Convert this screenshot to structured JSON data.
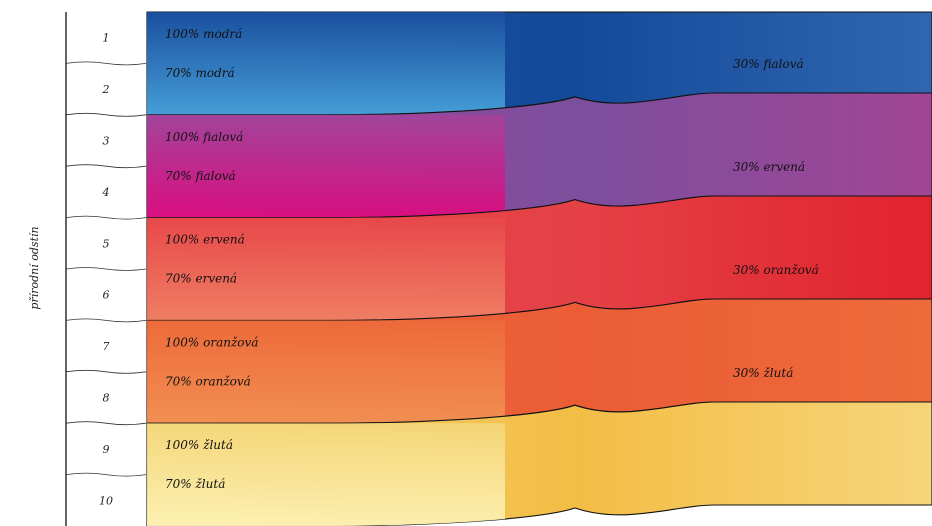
{
  "y_label": "přírodní odstín",
  "rows": [
    "1",
    "2",
    "3",
    "4",
    "5",
    "6",
    "7",
    "8",
    "9",
    "10"
  ],
  "bands": [
    {
      "color": "modrá",
      "top": "#1a4f9e",
      "bottom": "#4aa6dd",
      "label_full": "100% modrá",
      "label_70": "70% modrá",
      "label_30": null
    },
    {
      "color": "fialová",
      "top": "#a3449a",
      "bottom": "#e0087e",
      "label_full": "100% fialová",
      "label_70": "70% fialová",
      "label_30": "30% fialová"
    },
    {
      "color": "červená",
      "top": "#e8484a",
      "bottom": "#f08466",
      "label_full": "100% ervená",
      "label_70": "70% ervená",
      "label_30": "30% ervená"
    },
    {
      "color": "oranžová",
      "top": "#ed6a3a",
      "bottom": "#f29355",
      "label_full": "100% oranžová",
      "label_70": "70% oranžová",
      "label_30": "30% oranžová"
    },
    {
      "color": "žlutá",
      "top": "#f4d77a",
      "bottom": "#fdf3b8",
      "label_full": "100% žlutá",
      "label_70": "70% žlutá",
      "label_30": "30% žlutá"
    }
  ],
  "right_colors": [
    {
      "top": "#144a9a",
      "bottom": "#3166b0"
    },
    {
      "top": "#7b4f9d",
      "bottom": "#a14595"
    },
    {
      "top": "#e44146",
      "bottom": "#e2232d"
    },
    {
      "top": "#ec5d36",
      "bottom": "#ed6a3a"
    },
    {
      "top": "#f3bd45",
      "bottom": "#f7d57a"
    }
  ]
}
